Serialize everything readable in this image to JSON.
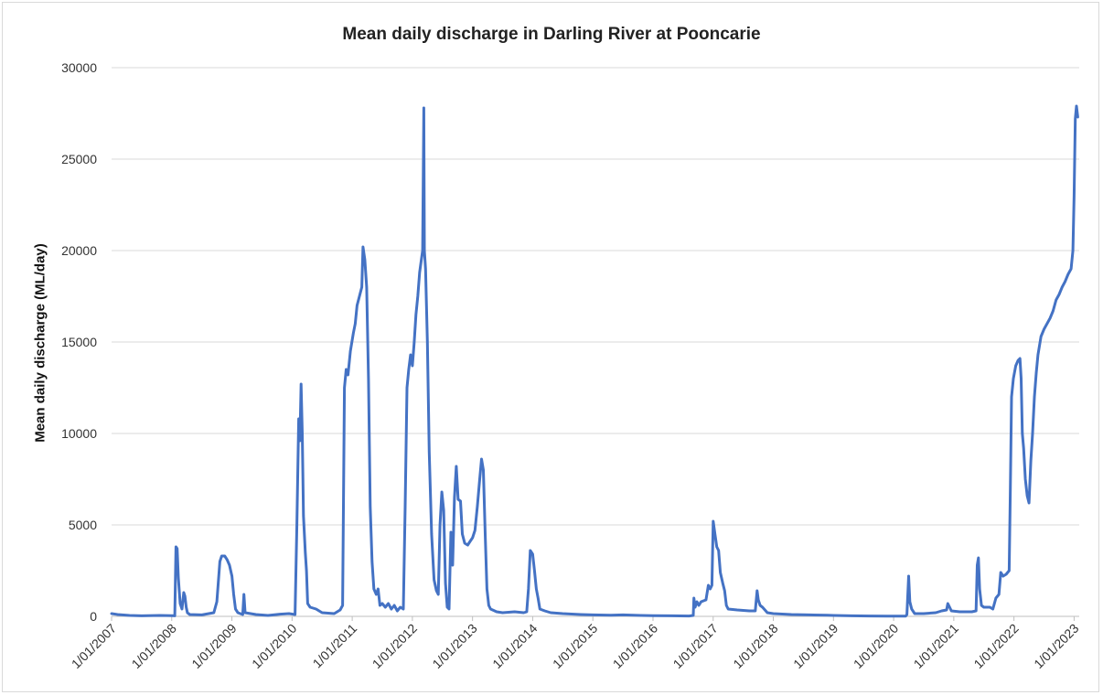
{
  "chart_data": {
    "type": "line",
    "title": "Mean daily discharge in Darling River at Pooncarie",
    "xlabel": "",
    "ylabel": "Mean daily discharge (ML/day)",
    "ylim": [
      0,
      30000
    ],
    "yticks": [
      "0",
      "5000",
      "10000",
      "15000",
      "20000",
      "25000",
      "30000"
    ],
    "xlim": [
      "1/01/2007",
      "1/02/2023"
    ],
    "xticks": [
      "1/01/2007",
      "1/01/2008",
      "1/01/2009",
      "1/01/2010",
      "1/01/2011",
      "1/01/2012",
      "1/01/2013",
      "1/01/2014",
      "1/01/2015",
      "1/01/2016",
      "1/01/2017",
      "1/01/2018",
      "1/01/2019",
      "1/01/2020",
      "1/01/2021",
      "1/01/2022",
      "1/01/2023"
    ],
    "grid": "horizontal",
    "legend": "none",
    "line_color": "#4472C4",
    "series": [
      {
        "values": [
          [
            2007.0,
            150
          ],
          [
            2007.1,
            100
          ],
          [
            2007.3,
            50
          ],
          [
            2007.5,
            30
          ],
          [
            2007.8,
            50
          ],
          [
            2008.0,
            40
          ],
          [
            2008.05,
            30
          ],
          [
            2008.07,
            3800
          ],
          [
            2008.09,
            3700
          ],
          [
            2008.11,
            2100
          ],
          [
            2008.14,
            700
          ],
          [
            2008.17,
            400
          ],
          [
            2008.2,
            1300
          ],
          [
            2008.22,
            1100
          ],
          [
            2008.24,
            500
          ],
          [
            2008.26,
            200
          ],
          [
            2008.3,
            100
          ],
          [
            2008.5,
            80
          ],
          [
            2008.7,
            200
          ],
          [
            2008.75,
            800
          ],
          [
            2008.8,
            3000
          ],
          [
            2008.83,
            3300
          ],
          [
            2008.88,
            3300
          ],
          [
            2008.92,
            3100
          ],
          [
            2008.96,
            2800
          ],
          [
            2009.0,
            2200
          ],
          [
            2009.03,
            1200
          ],
          [
            2009.06,
            400
          ],
          [
            2009.1,
            200
          ],
          [
            2009.18,
            100
          ],
          [
            2009.2,
            1200
          ],
          [
            2009.22,
            200
          ],
          [
            2009.4,
            100
          ],
          [
            2009.6,
            50
          ],
          [
            2009.8,
            120
          ],
          [
            2009.95,
            150
          ],
          [
            2010.05,
            100
          ],
          [
            2010.08,
            5000
          ],
          [
            2010.11,
            10800
          ],
          [
            2010.13,
            9600
          ],
          [
            2010.15,
            12700
          ],
          [
            2010.17,
            10000
          ],
          [
            2010.19,
            5500
          ],
          [
            2010.22,
            3500
          ],
          [
            2010.24,
            2500
          ],
          [
            2010.26,
            700
          ],
          [
            2010.3,
            500
          ],
          [
            2010.4,
            400
          ],
          [
            2010.5,
            200
          ],
          [
            2010.7,
            150
          ],
          [
            2010.8,
            350
          ],
          [
            2010.84,
            600
          ],
          [
            2010.87,
            12500
          ],
          [
            2010.9,
            13500
          ],
          [
            2010.93,
            13200
          ],
          [
            2010.97,
            14500
          ],
          [
            2011.02,
            15500
          ],
          [
            2011.05,
            16000
          ],
          [
            2011.08,
            17000
          ],
          [
            2011.12,
            17500
          ],
          [
            2011.16,
            18000
          ],
          [
            2011.18,
            20200
          ],
          [
            2011.21,
            19500
          ],
          [
            2011.24,
            18000
          ],
          [
            2011.27,
            13000
          ],
          [
            2011.3,
            6000
          ],
          [
            2011.33,
            3000
          ],
          [
            2011.36,
            1500
          ],
          [
            2011.4,
            1200
          ],
          [
            2011.43,
            1500
          ],
          [
            2011.46,
            600
          ],
          [
            2011.5,
            700
          ],
          [
            2011.55,
            500
          ],
          [
            2011.6,
            700
          ],
          [
            2011.65,
            400
          ],
          [
            2011.7,
            600
          ],
          [
            2011.75,
            300
          ],
          [
            2011.8,
            500
          ],
          [
            2011.85,
            400
          ],
          [
            2011.88,
            6000
          ],
          [
            2011.91,
            12500
          ],
          [
            2011.94,
            13500
          ],
          [
            2011.97,
            14300
          ],
          [
            2012.0,
            13700
          ],
          [
            2012.03,
            15000
          ],
          [
            2012.06,
            16500
          ],
          [
            2012.09,
            17500
          ],
          [
            2012.12,
            18800
          ],
          [
            2012.15,
            19500
          ],
          [
            2012.17,
            20000
          ],
          [
            2012.19,
            27800
          ],
          [
            2012.2,
            20000
          ],
          [
            2012.22,
            19000
          ],
          [
            2012.25,
            15000
          ],
          [
            2012.28,
            9000
          ],
          [
            2012.32,
            4500
          ],
          [
            2012.36,
            2000
          ],
          [
            2012.4,
            1400
          ],
          [
            2012.43,
            1200
          ],
          [
            2012.46,
            5000
          ],
          [
            2012.49,
            6800
          ],
          [
            2012.52,
            5800
          ],
          [
            2012.55,
            1800
          ],
          [
            2012.58,
            500
          ],
          [
            2012.61,
            400
          ],
          [
            2012.64,
            4600
          ],
          [
            2012.67,
            2800
          ],
          [
            2012.7,
            6500
          ],
          [
            2012.73,
            8200
          ],
          [
            2012.76,
            6400
          ],
          [
            2012.8,
            6300
          ],
          [
            2012.83,
            4500
          ],
          [
            2012.87,
            4000
          ],
          [
            2012.92,
            3900
          ],
          [
            2012.96,
            4100
          ],
          [
            2013.0,
            4300
          ],
          [
            2013.04,
            4700
          ],
          [
            2013.08,
            6000
          ],
          [
            2013.12,
            7500
          ],
          [
            2013.15,
            8600
          ],
          [
            2013.18,
            8000
          ],
          [
            2013.21,
            4500
          ],
          [
            2013.24,
            1500
          ],
          [
            2013.27,
            600
          ],
          [
            2013.3,
            400
          ],
          [
            2013.4,
            250
          ],
          [
            2013.5,
            200
          ],
          [
            2013.7,
            250
          ],
          [
            2013.85,
            200
          ],
          [
            2013.9,
            250
          ],
          [
            2013.93,
            1500
          ],
          [
            2013.96,
            3600
          ],
          [
            2014.0,
            3400
          ],
          [
            2014.03,
            2500
          ],
          [
            2014.06,
            1500
          ],
          [
            2014.09,
            1000
          ],
          [
            2014.12,
            400
          ],
          [
            2014.2,
            300
          ],
          [
            2014.3,
            200
          ],
          [
            2014.5,
            150
          ],
          [
            2014.8,
            100
          ],
          [
            2015.0,
            80
          ],
          [
            2015.3,
            60
          ],
          [
            2015.5,
            80
          ],
          [
            2015.8,
            50
          ],
          [
            2016.0,
            40
          ],
          [
            2016.3,
            30
          ],
          [
            2016.6,
            20
          ],
          [
            2016.67,
            50
          ],
          [
            2016.68,
            1000
          ],
          [
            2016.7,
            500
          ],
          [
            2016.73,
            800
          ],
          [
            2016.76,
            600
          ],
          [
            2016.8,
            800
          ],
          [
            2016.88,
            900
          ],
          [
            2016.92,
            1700
          ],
          [
            2016.95,
            1500
          ],
          [
            2016.98,
            1700
          ],
          [
            2017.0,
            5200
          ],
          [
            2017.03,
            4500
          ],
          [
            2017.06,
            3800
          ],
          [
            2017.09,
            3600
          ],
          [
            2017.12,
            2400
          ],
          [
            2017.16,
            1800
          ],
          [
            2017.19,
            1400
          ],
          [
            2017.22,
            600
          ],
          [
            2017.25,
            400
          ],
          [
            2017.4,
            350
          ],
          [
            2017.6,
            300
          ],
          [
            2017.7,
            300
          ],
          [
            2017.73,
            1400
          ],
          [
            2017.75,
            900
          ],
          [
            2017.78,
            600
          ],
          [
            2017.82,
            500
          ],
          [
            2017.9,
            200
          ],
          [
            2018.0,
            150
          ],
          [
            2018.3,
            100
          ],
          [
            2018.6,
            80
          ],
          [
            2018.9,
            60
          ],
          [
            2019.0,
            50
          ],
          [
            2019.3,
            30
          ],
          [
            2019.6,
            20
          ],
          [
            2019.9,
            15
          ],
          [
            2020.0,
            10
          ],
          [
            2020.2,
            10
          ],
          [
            2020.22,
            100
          ],
          [
            2020.25,
            2200
          ],
          [
            2020.27,
            800
          ],
          [
            2020.3,
            400
          ],
          [
            2020.35,
            150
          ],
          [
            2020.5,
            150
          ],
          [
            2020.7,
            200
          ],
          [
            2020.8,
            300
          ],
          [
            2020.88,
            350
          ],
          [
            2020.9,
            700
          ],
          [
            2020.93,
            500
          ],
          [
            2020.96,
            300
          ],
          [
            2021.1,
            250
          ],
          [
            2021.3,
            250
          ],
          [
            2021.37,
            300
          ],
          [
            2021.39,
            2800
          ],
          [
            2021.41,
            3200
          ],
          [
            2021.43,
            1500
          ],
          [
            2021.46,
            600
          ],
          [
            2021.5,
            500
          ],
          [
            2021.6,
            500
          ],
          [
            2021.65,
            400
          ],
          [
            2021.7,
            1000
          ],
          [
            2021.75,
            1200
          ],
          [
            2021.78,
            2400
          ],
          [
            2021.82,
            2200
          ],
          [
            2021.87,
            2300
          ],
          [
            2021.92,
            2500
          ],
          [
            2021.94,
            7000
          ],
          [
            2021.96,
            12000
          ],
          [
            2021.99,
            13000
          ],
          [
            2022.03,
            13700
          ],
          [
            2022.07,
            14000
          ],
          [
            2022.1,
            14100
          ],
          [
            2022.12,
            13000
          ],
          [
            2022.14,
            10000
          ],
          [
            2022.16,
            9200
          ],
          [
            2022.19,
            7500
          ],
          [
            2022.22,
            6600
          ],
          [
            2022.25,
            6200
          ],
          [
            2022.28,
            8500
          ],
          [
            2022.31,
            10000
          ],
          [
            2022.34,
            12000
          ],
          [
            2022.37,
            13300
          ],
          [
            2022.4,
            14300
          ],
          [
            2022.45,
            15300
          ],
          [
            2022.5,
            15700
          ],
          [
            2022.55,
            16000
          ],
          [
            2022.6,
            16300
          ],
          [
            2022.65,
            16700
          ],
          [
            2022.7,
            17300
          ],
          [
            2022.75,
            17600
          ],
          [
            2022.8,
            18000
          ],
          [
            2022.85,
            18300
          ],
          [
            2022.9,
            18700
          ],
          [
            2022.95,
            19000
          ],
          [
            2022.98,
            20000
          ],
          [
            2023.0,
            23000
          ],
          [
            2023.02,
            27200
          ],
          [
            2023.04,
            27900
          ],
          [
            2023.06,
            27300
          ]
        ]
      }
    ]
  }
}
